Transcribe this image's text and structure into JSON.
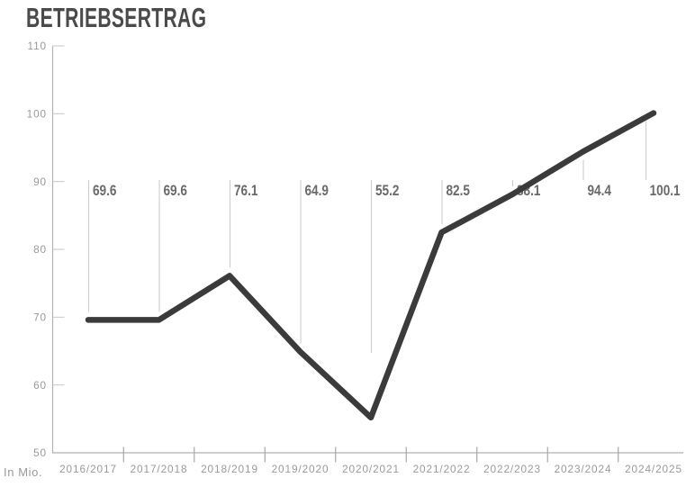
{
  "page": {
    "background": "#ffffff"
  },
  "chart_data": {
    "type": "line",
    "title": "BETRIEBSERTRAG",
    "unit_label": "In Mio.",
    "categories": [
      "2016/2017",
      "2017/2018",
      "2018/2019",
      "2019/2020",
      "2020/2021",
      "2021/2022",
      "2022/2023",
      "2023/2024",
      "2024/2025"
    ],
    "values": [
      69.6,
      69.6,
      76.1,
      64.9,
      55.2,
      82.5,
      88.1,
      94.4,
      100.1
    ],
    "value_labels": [
      "69.6",
      "69.6",
      "76.1",
      "64.9",
      "55.2",
      "82.5",
      "88.1",
      "94.4",
      "100.1"
    ],
    "ylim": [
      50,
      110
    ],
    "yticks": [
      110,
      100,
      90,
      80,
      70,
      60,
      50
    ],
    "xlabel": "",
    "ylabel": "In Mio.",
    "grid": false,
    "legend_position": "none",
    "colors": {
      "line": "#3b3b3b",
      "title_text": "#4a4a4a",
      "value_label_text": "#6a6a6a",
      "axis_line": "#b2b2b2",
      "y_tick": "#c6c6c6",
      "x_tick": "#a8a8a8",
      "leader_line": "#cdcdcd",
      "axis_text": "#9a9a9a",
      "background": "#ffffff"
    }
  }
}
